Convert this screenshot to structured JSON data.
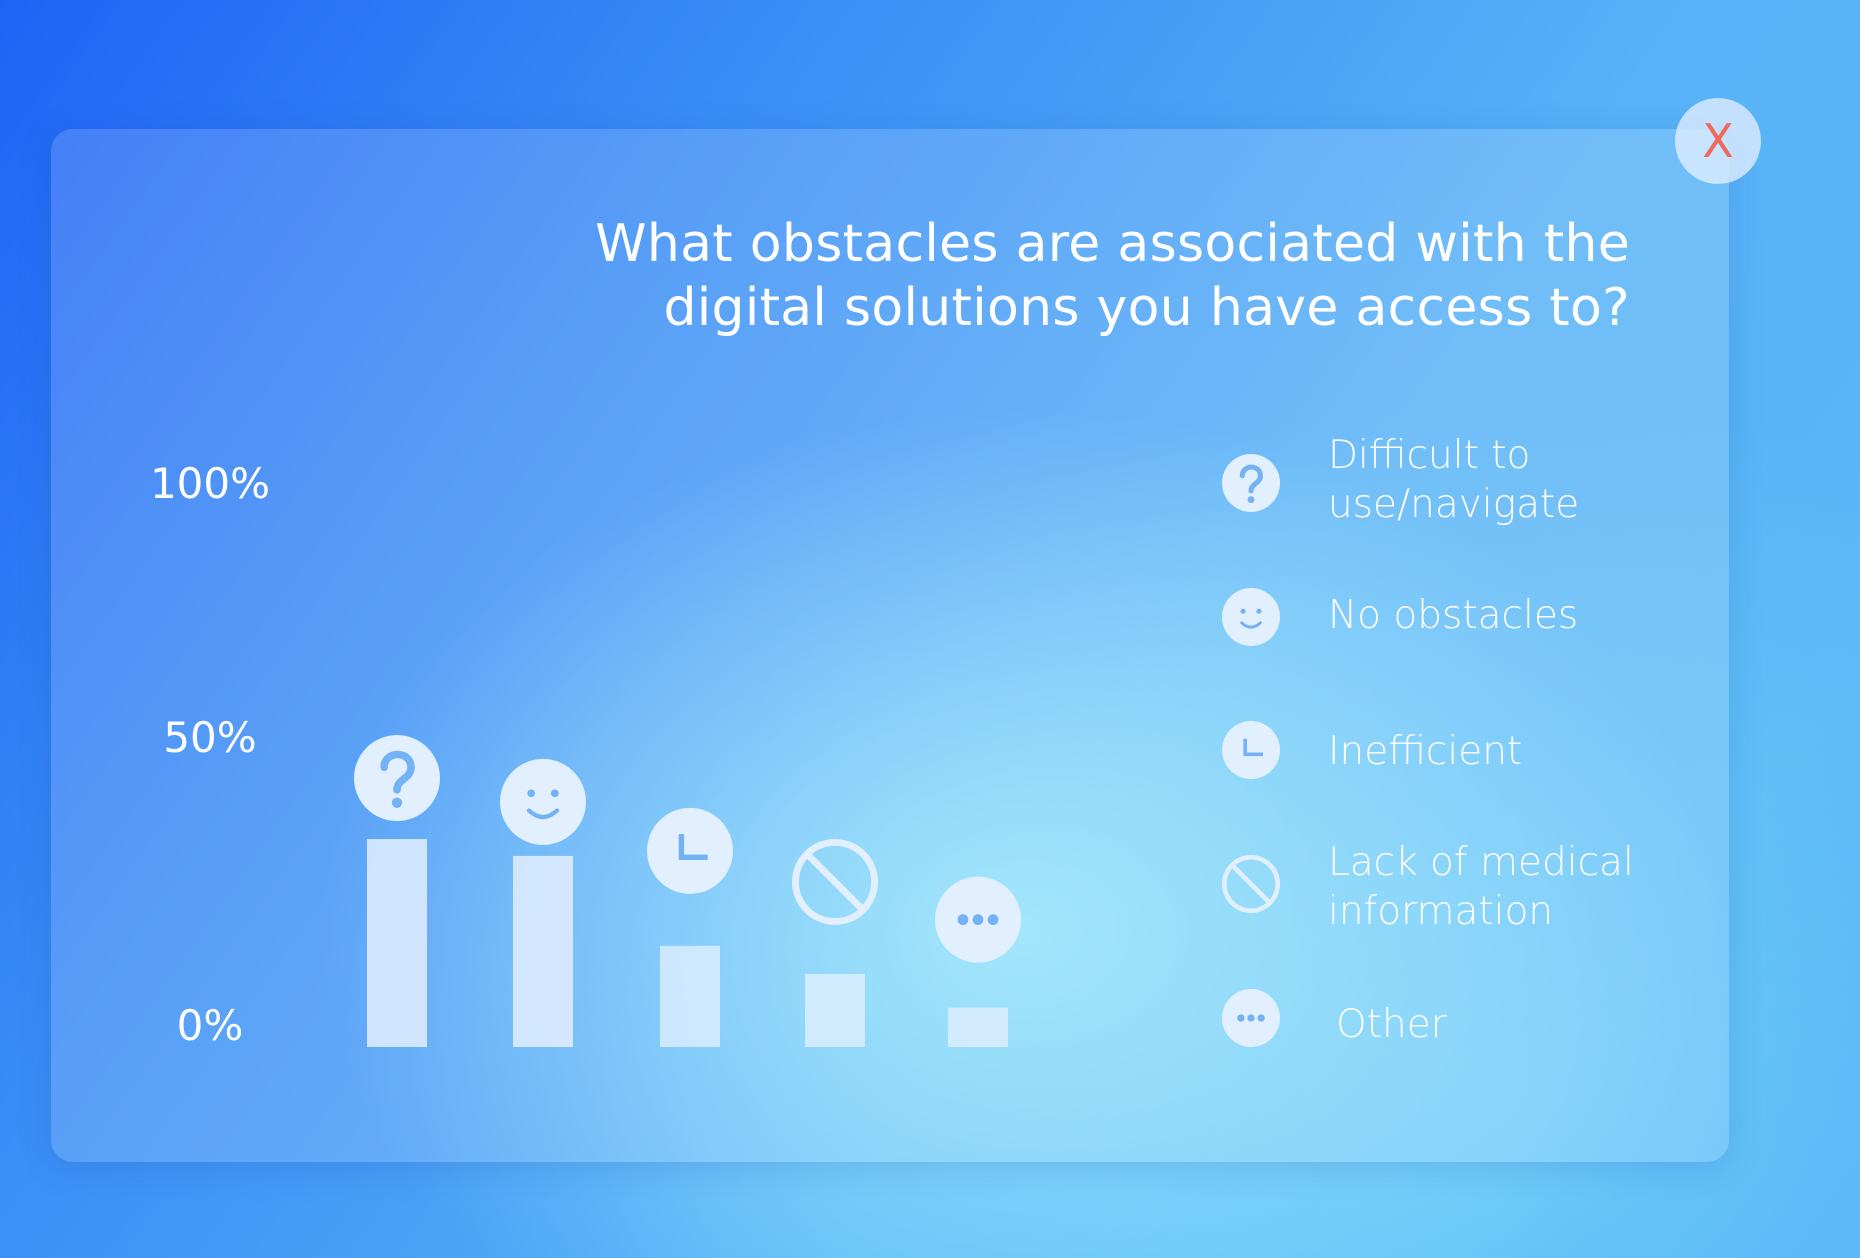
{
  "close_button": {
    "label": "X"
  },
  "chart_data": {
    "type": "bar",
    "title": "What obstacles are associated with the\ndigital solutions you have access to?",
    "categories": [
      "Difficult to use/navigate",
      "No obstacles",
      "Inefficient",
      "Lack of medical information",
      "Other"
    ],
    "values": [
      37,
      34,
      18,
      13,
      7
    ],
    "ylim": [
      0,
      100
    ],
    "y_ticks": [
      "0%",
      "50%",
      "100%"
    ],
    "grid": false,
    "legend": {
      "placement": "right",
      "items": [
        {
          "lines": [
            "Difficult to",
            "use/navigate"
          ],
          "icon": "question-icon"
        },
        {
          "lines": [
            "No obstacles"
          ],
          "icon": "smiley-icon"
        },
        {
          "lines": [
            "Inefficient"
          ],
          "icon": "clock-icon"
        },
        {
          "lines": [
            "Lack of medical",
            "information"
          ],
          "icon": "ban-icon"
        },
        {
          "lines": [
            "Other"
          ],
          "icon": "ellipsis-icon"
        }
      ]
    },
    "colors": {
      "bar": "#e2efff",
      "icon_fill": "#e2efff",
      "icon_glyph": "#72b2f5"
    }
  }
}
